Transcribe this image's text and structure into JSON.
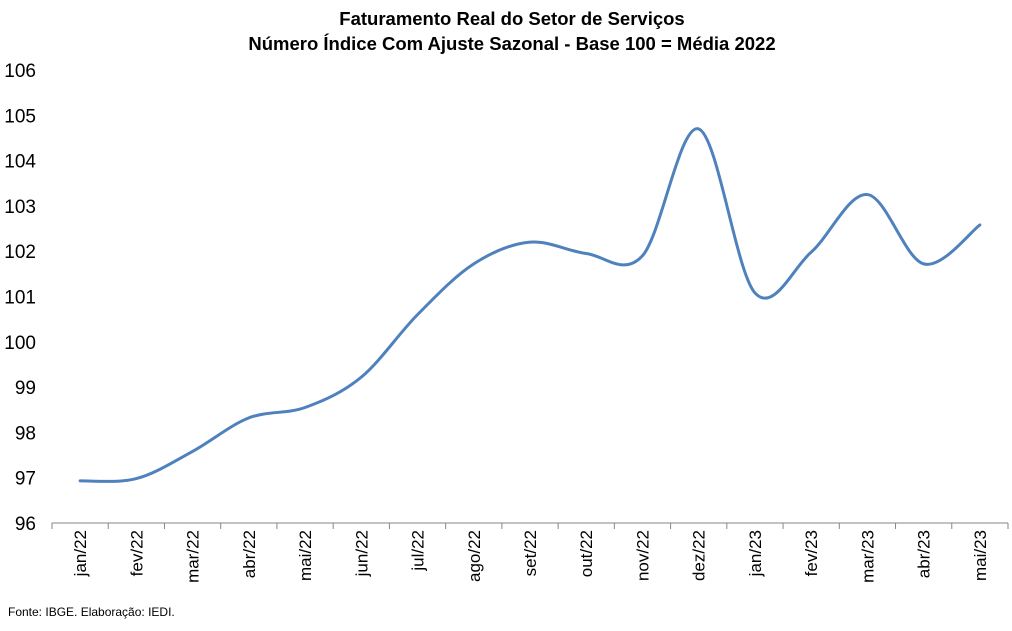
{
  "chart_data": {
    "type": "line",
    "title": "Faturamento Real do Setor de Serviços",
    "subtitle": "Número Índice Com Ajuste Sazonal - Base 100 = Média 2022",
    "categories": [
      "jan/22",
      "fev/22",
      "mar/22",
      "abr/22",
      "mai/22",
      "jun/22",
      "jul/22",
      "ago/22",
      "set/22",
      "out/22",
      "nov/22",
      "dez/22",
      "jan/23",
      "fev/23",
      "mar/23",
      "abr/23",
      "mai/23"
    ],
    "series": [
      {
        "values": [
          96.93,
          96.98,
          97.58,
          98.32,
          98.55,
          99.22,
          100.6,
          101.72,
          102.2,
          101.95,
          101.9,
          104.7,
          101.08,
          101.98,
          103.25,
          101.72,
          102.58
        ]
      }
    ],
    "ylim": [
      96,
      106
    ],
    "yticks": [
      96,
      97,
      98,
      99,
      100,
      101,
      102,
      103,
      104,
      105,
      106
    ],
    "xlabel": "",
    "ylabel": "",
    "grid": false,
    "legend": "none",
    "line_color": "#4f81bd"
  },
  "source_note": "Fonte: IBGE. Elaboração: IEDI."
}
